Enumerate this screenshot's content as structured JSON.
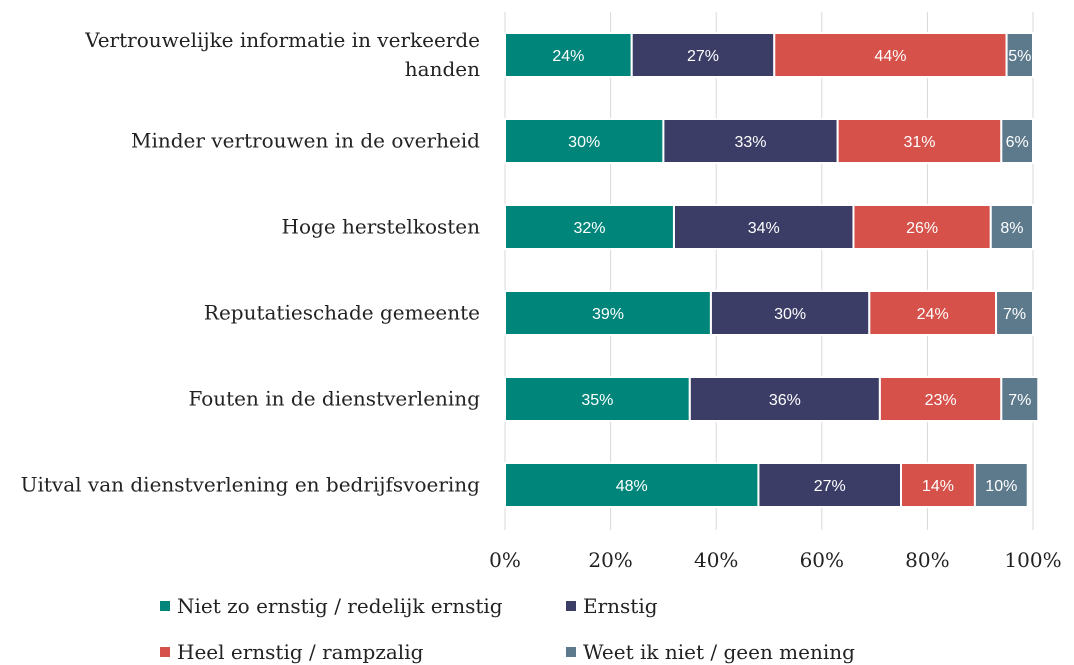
{
  "chart_data": {
    "type": "stacked-barh",
    "categories": [
      "Vertrouwelijke informatie in verkeerde handen",
      "Minder vertrouwen in de overheid",
      "Hoge herstelkosten",
      "Reputatieschade gemeente",
      "Fouten in de dienstverlening",
      "Uitval van dienstverlening en bedrijfsvoering"
    ],
    "series": [
      {
        "name": "Niet zo ernstig / redelijk ernstig",
        "color": "#00857a",
        "values": [
          24,
          30,
          32,
          39,
          35,
          48
        ],
        "value_labels": [
          "24%",
          "30%",
          "32%",
          "39%",
          "35%",
          "48%"
        ]
      },
      {
        "name": "Ernstig",
        "color": "#3b3d67",
        "values": [
          27,
          33,
          34,
          30,
          36,
          27
        ],
        "value_labels": [
          "27%",
          "33%",
          "34%",
          "30%",
          "36%",
          "27%"
        ]
      },
      {
        "name": "Heel ernstig / rampzalig",
        "color": "#d6514a",
        "values": [
          44,
          31,
          26,
          24,
          23,
          14
        ],
        "value_labels": [
          "44%",
          "31%",
          "26%",
          "24%",
          "23%",
          "14%"
        ]
      },
      {
        "name": "Weet ik niet / geen mening",
        "color": "#5d7a8d",
        "values": [
          5,
          6,
          8,
          7,
          7,
          10
        ],
        "value_labels": [
          "5%",
          "6%",
          "8%",
          "7%",
          "7%",
          "10%"
        ]
      }
    ],
    "xlim": [
      0,
      100
    ],
    "xticks": [
      {
        "value": 0,
        "label": "0%"
      },
      {
        "value": 20,
        "label": "20%"
      },
      {
        "value": 40,
        "label": "40%"
      },
      {
        "value": 60,
        "label": "60%"
      },
      {
        "value": 80,
        "label": "80%"
      },
      {
        "value": 100,
        "label": "100%"
      }
    ],
    "grid": true
  }
}
